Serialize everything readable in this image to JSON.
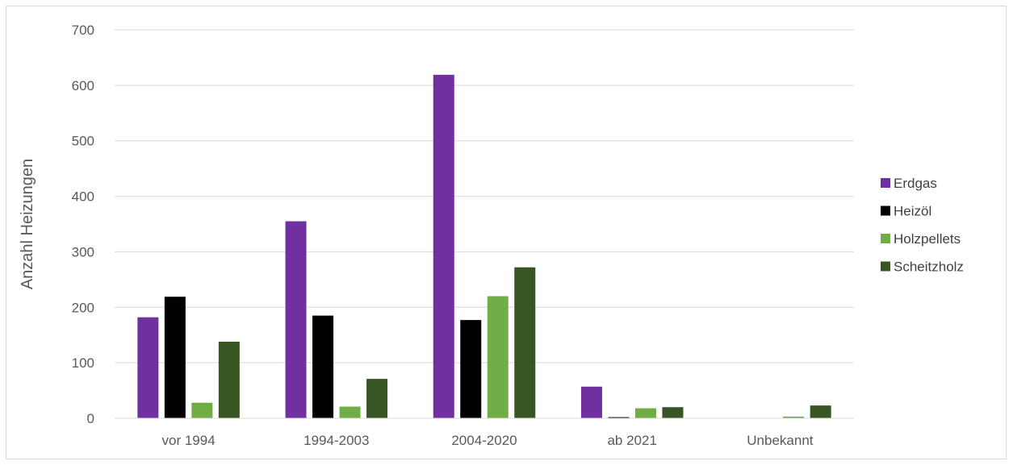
{
  "chart_data": {
    "type": "bar",
    "categories": [
      "vor 1994",
      "1994-2003",
      "2004-2020",
      "ab 2021",
      "Unbekannt"
    ],
    "series": [
      {
        "name": "Erdgas",
        "color": "#7030a0",
        "values": [
          182,
          355,
          619,
          57,
          0
        ]
      },
      {
        "name": "Heizöl",
        "color": "#000000",
        "values": [
          219,
          185,
          177,
          2,
          0
        ]
      },
      {
        "name": "Holzpellets",
        "color": "#70ad47",
        "values": [
          28,
          21,
          220,
          18,
          3
        ]
      },
      {
        "name": "Scheitzholz",
        "color": "#375623",
        "values": [
          138,
          71,
          272,
          20,
          23
        ]
      }
    ],
    "title": "",
    "xlabel": "",
    "ylabel": "Anzahl Heizungen",
    "ylim": [
      0,
      700
    ],
    "yticks": [
      0,
      100,
      200,
      300,
      400,
      500,
      600,
      700
    ],
    "grid": true,
    "legend_position": "right"
  }
}
